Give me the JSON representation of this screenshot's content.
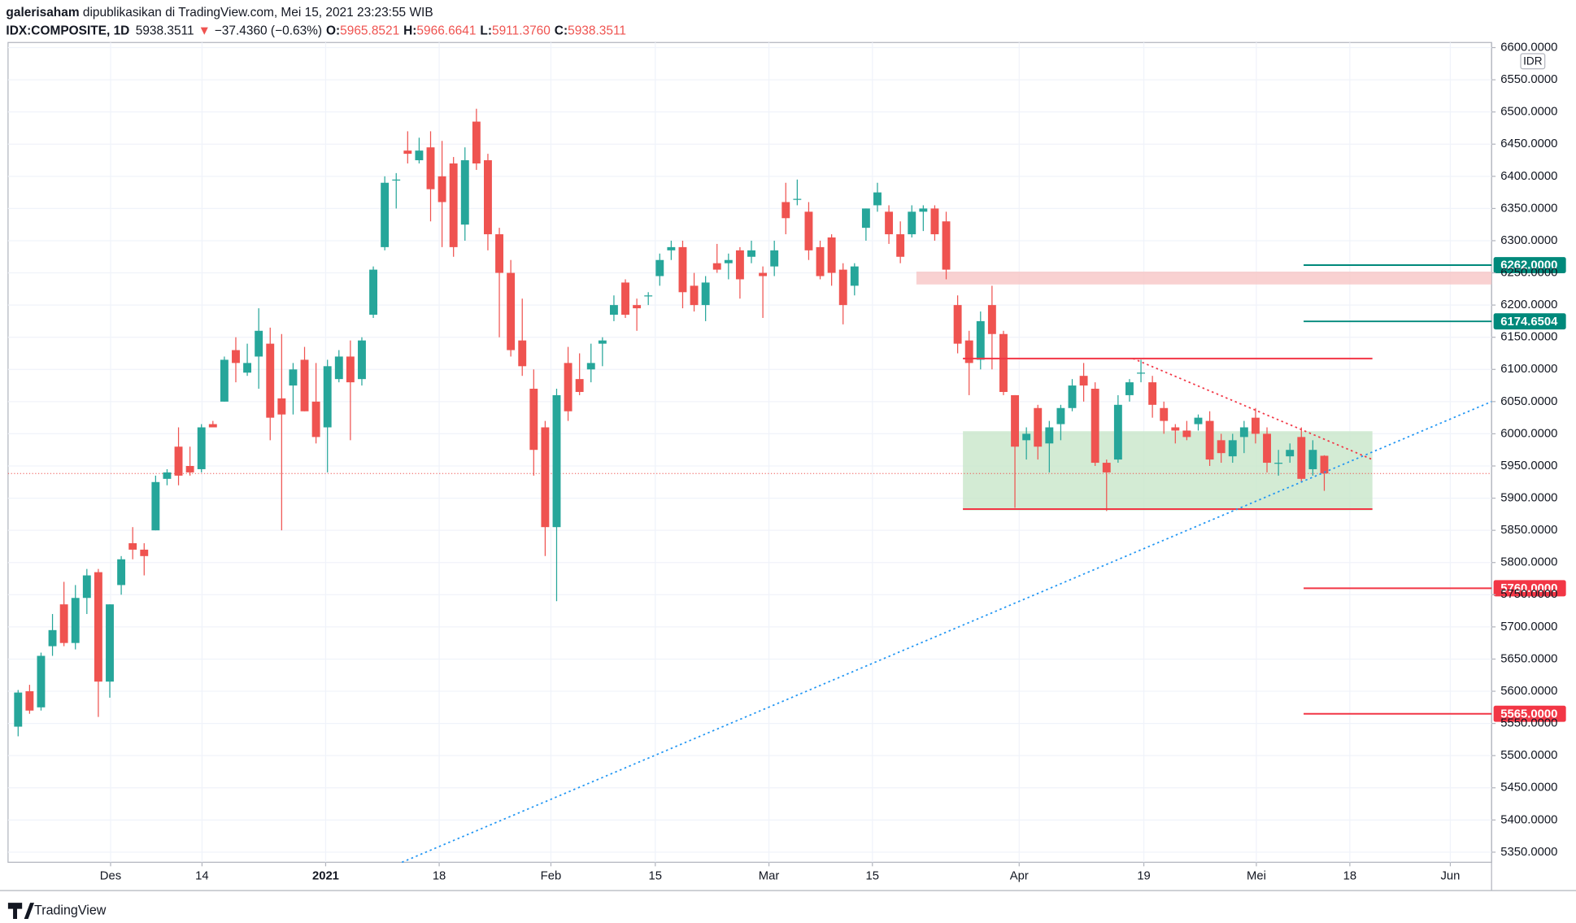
{
  "header": {
    "publisher": "galerisaham",
    "published": "dipublikasikan di TradingView.com, Mei 15, 2021 23:23:55 WIB",
    "symbol": "IDX:COMPOSITE, 1D",
    "last": "5938.3511",
    "arrow": "▼",
    "change": "−37.4360 (−0.63%)",
    "ohlc": [
      {
        "key": "O:",
        "value": "5965.8521"
      },
      {
        "key": "H:",
        "value": "5966.6641"
      },
      {
        "key": "L:",
        "value": "5911.3760"
      },
      {
        "key": "C:",
        "value": "5938.3511"
      }
    ]
  },
  "chart_data": {
    "type": "candlestick",
    "y_unit": "IDR",
    "up_color": "#26a69a",
    "down_color": "#ef5350",
    "grid": true,
    "xlim": [
      -0.88,
      128.6
    ],
    "ylim": [
      5334.3,
      6607.9
    ],
    "xticks": [
      {
        "value": 8.07,
        "label": "Des"
      },
      {
        "value": 16.05,
        "label": "14"
      },
      {
        "value": 26.84,
        "label": "2021"
      },
      {
        "value": 36.75,
        "label": "18"
      },
      {
        "value": 46.5,
        "label": "Feb"
      },
      {
        "value": 55.61,
        "label": "15"
      },
      {
        "value": 65.53,
        "label": "Mar"
      },
      {
        "value": 74.56,
        "label": "15"
      },
      {
        "value": 87.37,
        "label": "Apr"
      },
      {
        "value": 98.25,
        "label": "19"
      },
      {
        "value": 108.07,
        "label": "Mei"
      },
      {
        "value": 116.23,
        "label": "18"
      },
      {
        "value": 125.0,
        "label": "Jun"
      }
    ],
    "yticks": [
      {
        "value": 6600,
        "label": "6600.0000"
      },
      {
        "value": 6550,
        "label": "6550.0000"
      },
      {
        "value": 6500,
        "label": "6500.0000"
      },
      {
        "value": 6450,
        "label": "6450.0000"
      },
      {
        "value": 6400,
        "label": "6400.0000"
      },
      {
        "value": 6350,
        "label": "6350.0000"
      },
      {
        "value": 6300,
        "label": "6300.0000"
      },
      {
        "value": 6250,
        "label": "6250.0000"
      },
      {
        "value": 6200,
        "label": "6200.0000"
      },
      {
        "value": 6150,
        "label": "6150.0000"
      },
      {
        "value": 6100,
        "label": "6100.0000"
      },
      {
        "value": 6050,
        "label": "6050.0000"
      },
      {
        "value": 6000,
        "label": "6000.0000"
      },
      {
        "value": 5950,
        "label": "5950.0000"
      },
      {
        "value": 5900,
        "label": "5900.0000"
      },
      {
        "value": 5850,
        "label": "5850.0000"
      },
      {
        "value": 5800,
        "label": "5800.0000"
      },
      {
        "value": 5750,
        "label": "5750.0000"
      },
      {
        "value": 5700,
        "label": "5700.0000"
      },
      {
        "value": 5650,
        "label": "5650.0000"
      },
      {
        "value": 5600,
        "label": "5600.0000"
      },
      {
        "value": 5550,
        "label": "5550.0000"
      },
      {
        "value": 5500,
        "label": "5500.0000"
      },
      {
        "value": 5450,
        "label": "5450.0000"
      },
      {
        "value": 5400,
        "label": "5400.0000"
      },
      {
        "value": 5350,
        "label": "5350.0000"
      }
    ],
    "ohlc": [
      [
        5545,
        5602,
        5530,
        5598
      ],
      [
        5600,
        5610,
        5565,
        5570
      ],
      [
        5575,
        5660,
        5570,
        5655
      ],
      [
        5670,
        5720,
        5655,
        5695
      ],
      [
        5735,
        5770,
        5670,
        5675
      ],
      [
        5675,
        5765,
        5665,
        5745
      ],
      [
        5745,
        5790,
        5720,
        5780
      ],
      [
        5785,
        5790,
        5560,
        5615
      ],
      [
        5615,
        5735,
        5590,
        5735
      ],
      [
        5765,
        5810,
        5750,
        5805
      ],
      [
        5830,
        5855,
        5805,
        5820
      ],
      [
        5820,
        5830,
        5780,
        5810
      ],
      [
        5850,
        5935,
        5850,
        5925
      ],
      [
        5930,
        5945,
        5920,
        5940
      ],
      [
        5980,
        6010,
        5920,
        5935
      ],
      [
        5950,
        5980,
        5935,
        5940
      ],
      [
        5945,
        6015,
        5940,
        6010
      ],
      [
        6015,
        6020,
        6010,
        6010
      ],
      [
        6050,
        6120,
        6050,
        6115
      ],
      [
        6130,
        6150,
        6080,
        6110
      ],
      [
        6095,
        6140,
        6090,
        6110
      ],
      [
        6120,
        6195,
        6070,
        6160
      ],
      [
        6140,
        6165,
        5990,
        6025
      ],
      [
        6055,
        6155,
        5850,
        6030
      ],
      [
        6075,
        6110,
        6030,
        6100
      ],
      [
        6115,
        6135,
        6035,
        6035
      ],
      [
        6050,
        6110,
        5985,
        5995
      ],
      [
        6010,
        6115,
        5940,
        6105
      ],
      [
        6085,
        6130,
        6080,
        6120
      ],
      [
        6120,
        6145,
        5990,
        6080
      ],
      [
        6085,
        6150,
        6075,
        6145
      ],
      [
        6185,
        6260,
        6180,
        6255
      ],
      [
        6290,
        6400,
        6285,
        6390
      ],
      [
        6395,
        6405,
        6350,
        6395
      ],
      [
        6440,
        6470,
        6420,
        6435
      ],
      [
        6425,
        6460,
        6420,
        6440
      ],
      [
        6445,
        6470,
        6330,
        6380
      ],
      [
        6400,
        6455,
        6290,
        6360
      ],
      [
        6420,
        6430,
        6275,
        6290
      ],
      [
        6325,
        6445,
        6300,
        6425
      ],
      [
        6485,
        6505,
        6410,
        6420
      ],
      [
        6425,
        6435,
        6285,
        6310
      ],
      [
        6310,
        6320,
        6150,
        6250
      ],
      [
        6250,
        6270,
        6120,
        6130
      ],
      [
        6145,
        6210,
        6090,
        6105
      ],
      [
        6070,
        6100,
        5935,
        5975
      ],
      [
        6010,
        6020,
        5810,
        5855
      ],
      [
        5855,
        6070,
        5740,
        6060
      ],
      [
        6110,
        6135,
        6020,
        6035
      ],
      [
        6085,
        6125,
        6060,
        6065
      ],
      [
        6100,
        6140,
        6080,
        6110
      ],
      [
        6140,
        6150,
        6105,
        6145
      ],
      [
        6185,
        6215,
        6175,
        6200
      ],
      [
        6235,
        6240,
        6180,
        6185
      ],
      [
        6200,
        6210,
        6160,
        6195
      ],
      [
        6215,
        6220,
        6200,
        6215
      ],
      [
        6245,
        6280,
        6230,
        6270
      ],
      [
        6285,
        6300,
        6270,
        6290
      ],
      [
        6290,
        6300,
        6195,
        6220
      ],
      [
        6230,
        6250,
        6190,
        6200
      ],
      [
        6200,
        6245,
        6175,
        6235
      ],
      [
        6265,
        6295,
        6250,
        6255
      ],
      [
        6265,
        6280,
        6240,
        6270
      ],
      [
        6285,
        6290,
        6210,
        6240
      ],
      [
        6275,
        6300,
        6265,
        6285
      ],
      [
        6250,
        6260,
        6180,
        6245
      ],
      [
        6260,
        6300,
        6245,
        6285
      ],
      [
        6360,
        6390,
        6310,
        6335
      ],
      [
        6365,
        6395,
        6355,
        6365
      ],
      [
        6345,
        6360,
        6270,
        6285
      ],
      [
        6290,
        6300,
        6240,
        6245
      ],
      [
        6305,
        6310,
        6230,
        6250
      ],
      [
        6255,
        6265,
        6170,
        6200
      ],
      [
        6230,
        6265,
        6215,
        6260
      ],
      [
        6320,
        6350,
        6300,
        6350
      ],
      [
        6355,
        6390,
        6345,
        6375
      ],
      [
        6345,
        6355,
        6295,
        6310
      ],
      [
        6310,
        6330,
        6265,
        6275
      ],
      [
        6310,
        6355,
        6305,
        6345
      ],
      [
        6345,
        6355,
        6315,
        6350
      ],
      [
        6350,
        6355,
        6300,
        6310
      ],
      [
        6330,
        6345,
        6240,
        6255
      ],
      [
        6200,
        6215,
        6125,
        6140
      ],
      [
        6145,
        6160,
        6060,
        6110
      ],
      [
        6115,
        6190,
        6100,
        6175
      ],
      [
        6200,
        6230,
        6100,
        6155
      ],
      [
        6155,
        6160,
        6060,
        6065
      ],
      [
        6060,
        6060,
        5885,
        5980
      ],
      [
        5990,
        6010,
        5960,
        6000
      ],
      [
        6040,
        6045,
        5960,
        5980
      ],
      [
        5985,
        6020,
        5940,
        6010
      ],
      [
        6015,
        6045,
        5990,
        6040
      ],
      [
        6040,
        6085,
        6035,
        6075
      ],
      [
        6090,
        6110,
        6050,
        6075
      ],
      [
        6070,
        6080,
        5950,
        5955
      ],
      [
        5955,
        5960,
        5880,
        5940
      ],
      [
        5960,
        6060,
        5955,
        6045
      ],
      [
        6060,
        6085,
        6050,
        6080
      ],
      [
        6095,
        6115,
        6080,
        6095
      ],
      [
        6080,
        6090,
        6025,
        6045
      ],
      [
        6040,
        6050,
        6000,
        6020
      ],
      [
        6010,
        6015,
        5985,
        6005
      ],
      [
        6005,
        6020,
        5990,
        5995
      ],
      [
        6015,
        6030,
        6005,
        6025
      ],
      [
        6020,
        6035,
        5950,
        5960
      ],
      [
        5990,
        6000,
        5955,
        5970
      ],
      [
        5965,
        6000,
        5955,
        5990
      ],
      [
        5995,
        6020,
        5970,
        6010
      ],
      [
        6025,
        6040,
        5985,
        6000
      ],
      [
        6000,
        6010,
        5940,
        5955
      ],
      [
        5955,
        5975,
        5935,
        5955
      ],
      [
        5965,
        5985,
        5955,
        5975
      ],
      [
        5995,
        6010,
        5925,
        5930
      ],
      [
        5945,
        5990,
        5935,
        5975
      ],
      [
        5965.8521,
        5966.6641,
        5911.376,
        5938.3511
      ]
    ],
    "levels": [
      {
        "value": 6262,
        "label": "6262.0000",
        "color": "#00897b"
      },
      {
        "value": 6174.6504,
        "label": "6174.6504",
        "color": "#00897b"
      },
      {
        "value": 5760,
        "label": "5760.0000",
        "color": "#f23645"
      },
      {
        "value": 5565,
        "label": "5565.0000",
        "color": "#f23645"
      }
    ],
    "lines": [
      {
        "x": [
          82.46,
          118.2
        ],
        "y": [
          6117,
          6117
        ],
        "color": "#f23645",
        "dashed": false
      },
      {
        "x": [
          82.46,
          118.2
        ],
        "y": [
          5883,
          5883
        ],
        "color": "#f23645",
        "dashed": false
      },
      {
        "x": [
          33.5,
          128.6
        ],
        "y": [
          5334.3,
          6050
        ],
        "color": "#2196f3",
        "dashed": true
      },
      {
        "x": [
          97.3,
          118.2
        ],
        "y": [
          6117,
          5960
        ],
        "color": "#f23645",
        "dashed": true
      }
    ],
    "zones": [
      {
        "x": [
          78.4,
          128.6
        ],
        "y": [
          6232,
          6252
        ],
        "color": "#f8c6c6"
      },
      {
        "x": [
          82.46,
          118.2
        ],
        "y": [
          5881,
          6004
        ],
        "color": "#c8e6c9"
      }
    ]
  },
  "footer": {
    "brand": "TradingView"
  }
}
